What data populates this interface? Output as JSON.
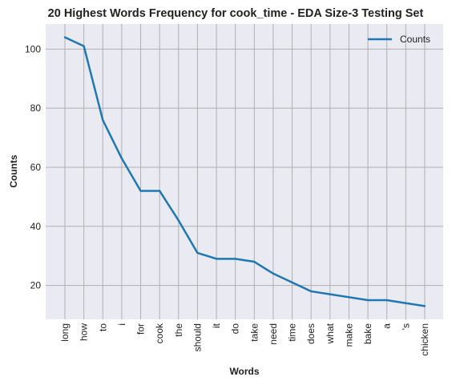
{
  "chart_data": {
    "type": "line",
    "title": "20 Highest Words Frequency for cook_time - EDA Size-3 Testing Set",
    "xlabel": "Words",
    "ylabel": "Counts",
    "categories": [
      "long",
      "how",
      "to",
      "i",
      "for",
      "cook",
      "the",
      "should",
      "it",
      "do",
      "take",
      "need",
      "time",
      "does",
      "what",
      "make",
      "bake",
      "a",
      "'s",
      "chicken"
    ],
    "series": [
      {
        "name": "Counts",
        "values": [
          104,
          101,
          76,
          63,
          52,
          52,
          42,
          31,
          29,
          29,
          28,
          24,
          21,
          18,
          17,
          16,
          15,
          15,
          14,
          13
        ],
        "color": "#1f77b4"
      }
    ],
    "ylim": [
      8.5,
      108.5
    ],
    "yticks": [
      20,
      40,
      60,
      80,
      100
    ],
    "grid": true,
    "legend_position": "top-right",
    "background": "#eaeaf2",
    "grid_color": "#b0b0b0"
  }
}
